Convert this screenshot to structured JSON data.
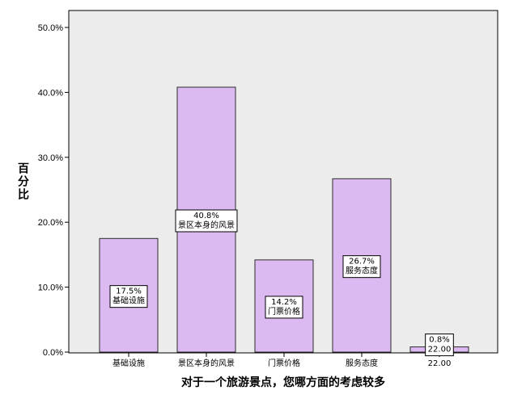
{
  "chart_data": {
    "type": "bar",
    "xlabel": "对于一个旅游景点，您哪方面的考虑较多",
    "ylabel": "百分比",
    "ylim": [
      0,
      50
    ],
    "yticks": [
      "0.0%",
      "10.0%",
      "20.0%",
      "30.0%",
      "40.0%",
      "50.0%"
    ],
    "grid": false,
    "categories": [
      "基础设施",
      "景区本身的风景",
      "门票价格",
      "服务态度",
      "22.00"
    ],
    "values": [
      17.5,
      40.8,
      14.2,
      26.7,
      0.8
    ],
    "data_labels": [
      {
        "value": "17.5%",
        "category": "基础设施"
      },
      {
        "value": "40.8%",
        "category": "景区本身的风景"
      },
      {
        "value": "14.2%",
        "category": "门票价格"
      },
      {
        "value": "26.7%",
        "category": "服务态度"
      },
      {
        "value": "0.8%",
        "category": "22.00"
      }
    ],
    "colors": {
      "plot_bg": "#ececec",
      "bar_fill": "#dcb9f0",
      "bar_stroke": "#2d2d2d",
      "label_box": "#ffffff"
    }
  }
}
